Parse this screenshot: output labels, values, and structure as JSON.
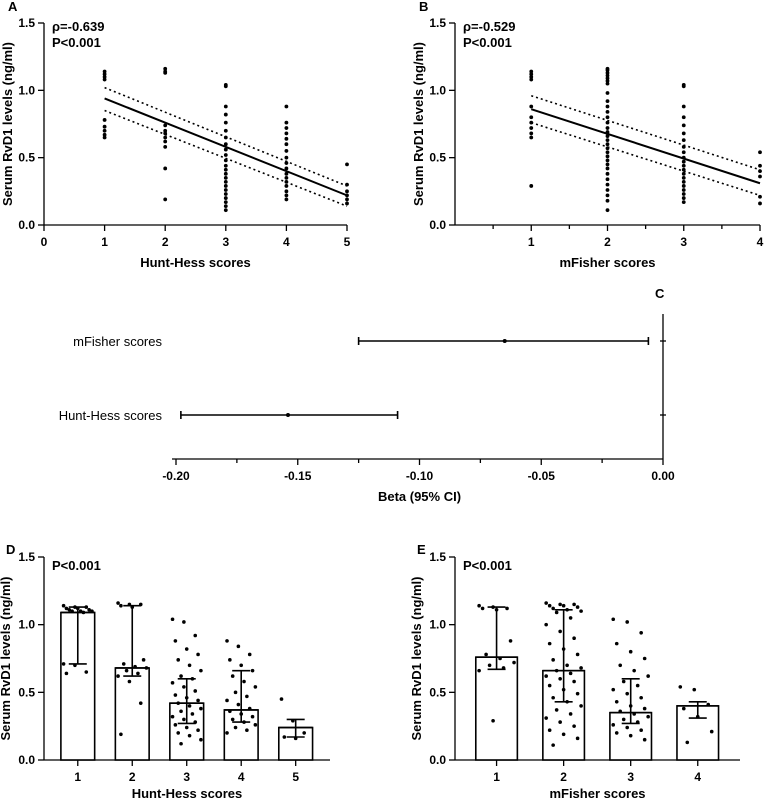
{
  "chart_data": [
    {
      "id": "A",
      "type": "scatter",
      "panel_label": "A",
      "xlabel": "Hunt-Hess scores",
      "ylabel": "Serum RvD1 levels (ng/ml)",
      "xlim": [
        0,
        5
      ],
      "ylim": [
        0,
        1.5
      ],
      "xticks": [
        "0",
        "1",
        "2",
        "3",
        "4",
        "5"
      ],
      "yticks": [
        "0.0",
        "0.5",
        "1.0",
        "1.5"
      ],
      "stat_rho": "ρ=-0.639",
      "stat_p": "P<0.001",
      "fit": {
        "x": [
          1,
          5
        ],
        "y": [
          0.94,
          0.22
        ]
      },
      "ci_upper": {
        "x": [
          1,
          5
        ],
        "y": [
          1.02,
          0.29
        ]
      },
      "ci_lower": {
        "x": [
          1,
          5
        ],
        "y": [
          0.85,
          0.14
        ]
      },
      "points": [
        {
          "x": 1,
          "y": 1.14
        },
        {
          "x": 1,
          "y": 1.12
        },
        {
          "x": 1,
          "y": 1.1
        },
        {
          "x": 1,
          "y": 1.08
        },
        {
          "x": 1,
          "y": 0.78
        },
        {
          "x": 1,
          "y": 0.73
        },
        {
          "x": 1,
          "y": 0.7
        },
        {
          "x": 1,
          "y": 0.67
        },
        {
          "x": 1,
          "y": 0.65
        },
        {
          "x": 2,
          "y": 1.16
        },
        {
          "x": 2,
          "y": 1.14
        },
        {
          "x": 2,
          "y": 1.13
        },
        {
          "x": 2,
          "y": 0.74
        },
        {
          "x": 2,
          "y": 0.7
        },
        {
          "x": 2,
          "y": 0.68
        },
        {
          "x": 2,
          "y": 0.65
        },
        {
          "x": 2,
          "y": 0.62
        },
        {
          "x": 2,
          "y": 0.58
        },
        {
          "x": 2,
          "y": 0.42
        },
        {
          "x": 2,
          "y": 0.19
        },
        {
          "x": 3,
          "y": 1.04
        },
        {
          "x": 3,
          "y": 1.03
        },
        {
          "x": 3,
          "y": 0.88
        },
        {
          "x": 3,
          "y": 0.82
        },
        {
          "x": 3,
          "y": 0.76
        },
        {
          "x": 3,
          "y": 0.7
        },
        {
          "x": 3,
          "y": 0.65
        },
        {
          "x": 3,
          "y": 0.6
        },
        {
          "x": 3,
          "y": 0.56
        },
        {
          "x": 3,
          "y": 0.52
        },
        {
          "x": 3,
          "y": 0.48
        },
        {
          "x": 3,
          "y": 0.44
        },
        {
          "x": 3,
          "y": 0.41
        },
        {
          "x": 3,
          "y": 0.38
        },
        {
          "x": 3,
          "y": 0.35
        },
        {
          "x": 3,
          "y": 0.32
        },
        {
          "x": 3,
          "y": 0.29
        },
        {
          "x": 3,
          "y": 0.26
        },
        {
          "x": 3,
          "y": 0.23
        },
        {
          "x": 3,
          "y": 0.2
        },
        {
          "x": 3,
          "y": 0.17
        },
        {
          "x": 3,
          "y": 0.14
        },
        {
          "x": 3,
          "y": 0.11
        },
        {
          "x": 4,
          "y": 0.88
        },
        {
          "x": 4,
          "y": 0.76
        },
        {
          "x": 4,
          "y": 0.72
        },
        {
          "x": 4,
          "y": 0.68
        },
        {
          "x": 4,
          "y": 0.64
        },
        {
          "x": 4,
          "y": 0.6
        },
        {
          "x": 4,
          "y": 0.55
        },
        {
          "x": 4,
          "y": 0.5
        },
        {
          "x": 4,
          "y": 0.46
        },
        {
          "x": 4,
          "y": 0.42
        },
        {
          "x": 4,
          "y": 0.38
        },
        {
          "x": 4,
          "y": 0.35
        },
        {
          "x": 4,
          "y": 0.32
        },
        {
          "x": 4,
          "y": 0.29
        },
        {
          "x": 4,
          "y": 0.25
        },
        {
          "x": 4,
          "y": 0.22
        },
        {
          "x": 4,
          "y": 0.19
        },
        {
          "x": 5,
          "y": 0.45
        },
        {
          "x": 5,
          "y": 0.3
        },
        {
          "x": 5,
          "y": 0.25
        },
        {
          "x": 5,
          "y": 0.22
        },
        {
          "x": 5,
          "y": 0.19
        },
        {
          "x": 5,
          "y": 0.16
        }
      ]
    },
    {
      "id": "B",
      "type": "scatter",
      "panel_label": "B",
      "xlabel": "mFisher scores",
      "ylabel": "Serum RvD1 levels (ng/ml)",
      "xlim": [
        0,
        4
      ],
      "ylim": [
        0,
        1.5
      ],
      "xticks": [
        "1",
        "2",
        "3",
        "4"
      ],
      "yticks": [
        "0.0",
        "0.5",
        "1.0",
        "1.5"
      ],
      "stat_rho": "ρ=-0.529",
      "stat_p": "P<0.001",
      "fit": {
        "x": [
          1,
          4
        ],
        "y": [
          0.86,
          0.31
        ]
      },
      "ci_upper": {
        "x": [
          1,
          4
        ],
        "y": [
          0.96,
          0.41
        ]
      },
      "ci_lower": {
        "x": [
          1,
          4
        ],
        "y": [
          0.76,
          0.22
        ]
      },
      "points": [
        {
          "x": 1,
          "y": 1.14
        },
        {
          "x": 1,
          "y": 1.12
        },
        {
          "x": 1,
          "y": 1.1
        },
        {
          "x": 1,
          "y": 1.08
        },
        {
          "x": 1,
          "y": 0.88
        },
        {
          "x": 1,
          "y": 0.8
        },
        {
          "x": 1,
          "y": 0.76
        },
        {
          "x": 1,
          "y": 0.72
        },
        {
          "x": 1,
          "y": 0.68
        },
        {
          "x": 1,
          "y": 0.65
        },
        {
          "x": 1,
          "y": 0.29
        },
        {
          "x": 2,
          "y": 1.16
        },
        {
          "x": 2,
          "y": 1.15
        },
        {
          "x": 2,
          "y": 1.13
        },
        {
          "x": 2,
          "y": 1.11
        },
        {
          "x": 2,
          "y": 1.09
        },
        {
          "x": 2,
          "y": 1.07
        },
        {
          "x": 2,
          "y": 1.05
        },
        {
          "x": 2,
          "y": 0.98
        },
        {
          "x": 2,
          "y": 0.92
        },
        {
          "x": 2,
          "y": 0.88
        },
        {
          "x": 2,
          "y": 0.84
        },
        {
          "x": 2,
          "y": 0.8
        },
        {
          "x": 2,
          "y": 0.76
        },
        {
          "x": 2,
          "y": 0.72
        },
        {
          "x": 2,
          "y": 0.69
        },
        {
          "x": 2,
          "y": 0.66
        },
        {
          "x": 2,
          "y": 0.63
        },
        {
          "x": 2,
          "y": 0.6
        },
        {
          "x": 2,
          "y": 0.57
        },
        {
          "x": 2,
          "y": 0.54
        },
        {
          "x": 2,
          "y": 0.51
        },
        {
          "x": 2,
          "y": 0.48
        },
        {
          "x": 2,
          "y": 0.45
        },
        {
          "x": 2,
          "y": 0.42
        },
        {
          "x": 2,
          "y": 0.38
        },
        {
          "x": 2,
          "y": 0.34
        },
        {
          "x": 2,
          "y": 0.3
        },
        {
          "x": 2,
          "y": 0.26
        },
        {
          "x": 2,
          "y": 0.22
        },
        {
          "x": 2,
          "y": 0.18
        },
        {
          "x": 2,
          "y": 0.11
        },
        {
          "x": 3,
          "y": 1.04
        },
        {
          "x": 3,
          "y": 1.03
        },
        {
          "x": 3,
          "y": 0.88
        },
        {
          "x": 3,
          "y": 0.8
        },
        {
          "x": 3,
          "y": 0.74
        },
        {
          "x": 3,
          "y": 0.68
        },
        {
          "x": 3,
          "y": 0.63
        },
        {
          "x": 3,
          "y": 0.58
        },
        {
          "x": 3,
          "y": 0.54
        },
        {
          "x": 3,
          "y": 0.5
        },
        {
          "x": 3,
          "y": 0.47
        },
        {
          "x": 3,
          "y": 0.44
        },
        {
          "x": 3,
          "y": 0.41
        },
        {
          "x": 3,
          "y": 0.38
        },
        {
          "x": 3,
          "y": 0.35
        },
        {
          "x": 3,
          "y": 0.32
        },
        {
          "x": 3,
          "y": 0.29
        },
        {
          "x": 3,
          "y": 0.26
        },
        {
          "x": 3,
          "y": 0.23
        },
        {
          "x": 3,
          "y": 0.2
        },
        {
          "x": 3,
          "y": 0.17
        },
        {
          "x": 4,
          "y": 0.54
        },
        {
          "x": 4,
          "y": 0.44
        },
        {
          "x": 4,
          "y": 0.4
        },
        {
          "x": 4,
          "y": 0.36
        },
        {
          "x": 4,
          "y": 0.21
        },
        {
          "x": 4,
          "y": 0.16
        }
      ]
    },
    {
      "id": "C",
      "type": "forest",
      "panel_label": "C",
      "xlabel": "Beta (95% CI)",
      "xlim": [
        -0.2,
        0.0
      ],
      "xticks": [
        "-0.20",
        "-0.15",
        "-0.10",
        "-0.05",
        "0.00"
      ],
      "rows": [
        {
          "label": "mFisher scores",
          "beta": -0.065,
          "lower": -0.125,
          "upper": -0.006
        },
        {
          "label": "Hunt-Hess scores",
          "beta": -0.154,
          "lower": -0.198,
          "upper": -0.109
        }
      ]
    },
    {
      "id": "D",
      "type": "bar",
      "panel_label": "D",
      "xlabel": "Hunt-Hess scores",
      "ylabel": "Serum RvD1 levels (ng/ml)",
      "ylim": [
        0,
        1.5
      ],
      "stat_p": "P<0.001",
      "categories": [
        "1",
        "2",
        "3",
        "4",
        "5"
      ],
      "yticks": [
        "0.0",
        "0.5",
        "1.0",
        "1.5"
      ],
      "values": [
        1.09,
        0.68,
        0.42,
        0.37,
        0.24
      ],
      "err_low": [
        0.71,
        0.62,
        0.27,
        0.28,
        0.17
      ],
      "err_high": [
        1.13,
        1.14,
        0.6,
        0.66,
        0.3
      ],
      "points": [
        [
          1.14,
          1.13,
          1.13,
          1.12,
          1.12,
          1.11,
          1.11,
          1.1,
          1.1,
          1.1,
          1.09,
          0.71,
          0.7,
          0.65,
          0.64
        ],
        [
          1.16,
          1.15,
          1.15,
          1.14,
          1.13,
          0.74,
          0.71,
          0.69,
          0.68,
          0.66,
          0.64,
          0.62,
          0.58,
          0.42,
          0.19
        ],
        [
          1.04,
          1.02,
          0.92,
          0.88,
          0.82,
          0.78,
          0.74,
          0.7,
          0.66,
          0.62,
          0.6,
          0.57,
          0.54,
          0.51,
          0.48,
          0.46,
          0.44,
          0.42,
          0.4,
          0.38,
          0.36,
          0.34,
          0.32,
          0.3,
          0.28,
          0.26,
          0.24,
          0.22,
          0.2,
          0.18,
          0.15,
          0.12
        ],
        [
          0.88,
          0.84,
          0.78,
          0.74,
          0.7,
          0.66,
          0.62,
          0.58,
          0.54,
          0.5,
          0.47,
          0.44,
          0.41,
          0.38,
          0.36,
          0.34,
          0.32,
          0.3,
          0.28,
          0.26,
          0.24,
          0.22,
          0.2
        ],
        [
          0.45,
          0.29,
          0.2,
          0.17,
          0.16
        ]
      ]
    },
    {
      "id": "E",
      "type": "bar",
      "panel_label": "E",
      "xlabel": "mFisher scores",
      "ylabel": "Serum RvD1 levels (ng/ml)",
      "ylim": [
        0,
        1.5
      ],
      "stat_p": "P<0.001",
      "categories": [
        "1",
        "2",
        "3",
        "4"
      ],
      "yticks": [
        "0.0",
        "0.5",
        "1.0",
        "1.5"
      ],
      "values": [
        0.76,
        0.66,
        0.35,
        0.4
      ],
      "err_low": [
        0.67,
        0.43,
        0.27,
        0.31
      ],
      "err_high": [
        1.13,
        1.11,
        0.6,
        0.43
      ],
      "points": [
        [
          1.14,
          1.13,
          1.12,
          1.12,
          1.11,
          0.88,
          0.78,
          0.75,
          0.72,
          0.7,
          0.68,
          0.66,
          0.29
        ],
        [
          1.16,
          1.15,
          1.15,
          1.14,
          1.14,
          1.13,
          1.12,
          1.11,
          1.1,
          1.09,
          1.05,
          1.0,
          0.95,
          0.9,
          0.86,
          0.82,
          0.78,
          0.74,
          0.7,
          0.68,
          0.66,
          0.64,
          0.62,
          0.6,
          0.58,
          0.55,
          0.52,
          0.49,
          0.46,
          0.43,
          0.4,
          0.37,
          0.34,
          0.31,
          0.28,
          0.25,
          0.22,
          0.19,
          0.16,
          0.11
        ],
        [
          1.04,
          1.02,
          0.94,
          0.86,
          0.8,
          0.75,
          0.7,
          0.66,
          0.62,
          0.58,
          0.55,
          0.52,
          0.49,
          0.46,
          0.43,
          0.4,
          0.38,
          0.36,
          0.34,
          0.32,
          0.3,
          0.28,
          0.26,
          0.24,
          0.22,
          0.2,
          0.18,
          0.15
        ],
        [
          0.54,
          0.52,
          0.41,
          0.38,
          0.32,
          0.21,
          0.13
        ]
      ]
    }
  ]
}
